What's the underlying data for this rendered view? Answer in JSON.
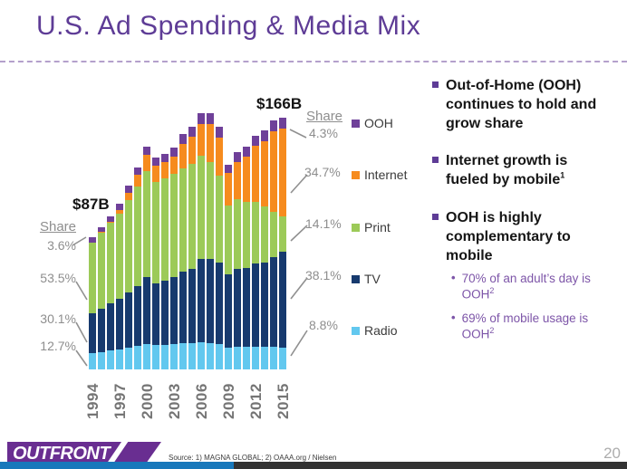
{
  "slide": {
    "title": "U.S. Ad Spending & Media Mix",
    "logo": "OUTFRONT",
    "source": "Source: 1) MAGNA GLOBAL; 2) OAAA.org / Nielsen",
    "page_number": "20"
  },
  "chart_data": {
    "type": "bar",
    "stacked": true,
    "unit": "USD billions",
    "years": [
      1994,
      1995,
      1996,
      1997,
      1998,
      1999,
      2000,
      2001,
      2002,
      2003,
      2004,
      2005,
      2006,
      2007,
      2008,
      2009,
      2010,
      2011,
      2012,
      2013,
      2014,
      2015
    ],
    "x_tick_labels": [
      "1994",
      "1997",
      "2000",
      "2003",
      "2006",
      "2009",
      "2012",
      "2015"
    ],
    "series": [
      {
        "name": "Radio",
        "color": "#62c8ef",
        "values": [
          11.0,
          11.6,
          12.3,
          13.1,
          14.3,
          15.6,
          17.0,
          16.0,
          16.3,
          16.7,
          17.2,
          17.5,
          17.8,
          17.5,
          16.5,
          14.5,
          15.0,
          15.0,
          15.2,
          15.0,
          14.8,
          14.6
        ]
      },
      {
        "name": "TV",
        "color": "#173a6e",
        "values": [
          26.2,
          28.5,
          31.0,
          33.2,
          36.5,
          39.5,
          44.0,
          41.0,
          42.5,
          44.5,
          47.0,
          48.5,
          55.0,
          55.5,
          54.0,
          48.0,
          51.0,
          52.0,
          54.5,
          55.5,
          59.0,
          63.2
        ]
      },
      {
        "name": "Print",
        "color": "#9cca58",
        "values": [
          46.6,
          50.2,
          53.2,
          56.6,
          61.0,
          65.3,
          69.5,
          66.5,
          67.0,
          67.5,
          68.5,
          69.5,
          68.0,
          64.0,
          57.0,
          45.5,
          46.0,
          43.5,
          40.5,
          37.0,
          30.0,
          23.4
        ]
      },
      {
        "name": "Internet",
        "color": "#f68b1e",
        "values": [
          0.1,
          0.3,
          0.8,
          2.1,
          4.8,
          7.7,
          11.0,
          10.8,
          10.8,
          11.7,
          16.0,
          18.0,
          21.0,
          25.0,
          25.6,
          21.3,
          25.0,
          30.0,
          37.0,
          43.0,
          53.0,
          57.6
        ]
      },
      {
        "name": "OOH",
        "color": "#6f4099",
        "values": [
          3.1,
          3.4,
          3.7,
          4.0,
          4.4,
          4.9,
          5.5,
          5.2,
          5.4,
          5.6,
          6.3,
          6.5,
          7.0,
          7.0,
          6.9,
          5.7,
          6.0,
          6.5,
          6.8,
          7.0,
          7.2,
          7.1
        ]
      }
    ],
    "legend": [
      "OOH",
      "Internet",
      "Print",
      "TV",
      "Radio"
    ],
    "annotations": {
      "start_total": "$87B",
      "end_total": "$166B"
    },
    "share_1994": {
      "label": "Share",
      "items": [
        {
          "name": "OOH",
          "value": "3.6%"
        },
        {
          "name": "Print",
          "value": "53.5%"
        },
        {
          "name": "TV",
          "value": "30.1%"
        },
        {
          "name": "Radio",
          "value": "12.7%"
        }
      ]
    },
    "share_2015": {
      "label": "Share",
      "items": [
        {
          "name": "OOH",
          "value": "4.3%"
        },
        {
          "name": "Internet",
          "value": "34.7%"
        },
        {
          "name": "Print",
          "value": "14.1%"
        },
        {
          "name": "TV",
          "value": "38.1%"
        },
        {
          "name": "Radio",
          "value": "8.8%"
        }
      ]
    }
  },
  "bullets": [
    {
      "text": "Out-of-Home (OOH) continues to hold and grow share",
      "sup": ""
    },
    {
      "text": "Internet growth is fueled by mobile",
      "sup": "1"
    },
    {
      "text": "OOH is highly complementary to mobile",
      "sup": "",
      "subs": [
        {
          "text": "70% of an adult’s day is OOH",
          "sup": "2"
        },
        {
          "text": "69% of mobile usage is OOH",
          "sup": "2"
        }
      ]
    }
  ]
}
